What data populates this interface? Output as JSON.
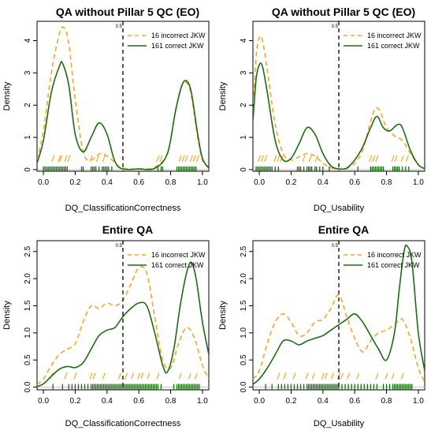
{
  "colors": {
    "incorrect": "#f5a623",
    "correct": "#1d6b14",
    "axis": "#000000",
    "cutoff": "#000000"
  },
  "chart_data": [
    {
      "type": "line",
      "title": "QA without Pillar 5 QC (EO)",
      "xlabel": "DQ_ClassificationCorrectness",
      "ylabel": "Density",
      "xlim": [
        -0.04,
        1.04
      ],
      "ylim": [
        -0.05,
        4.6
      ],
      "xticks": [
        0.0,
        0.2,
        0.4,
        0.6,
        0.8,
        1.0
      ],
      "xtick_labels": [
        "0.0",
        "0.2",
        "0.4",
        "0.6",
        "0.8",
        "1.0"
      ],
      "yticks": [
        0,
        1,
        2,
        3,
        4
      ],
      "ytick_labels": [
        "0",
        "1",
        "2",
        "3",
        "4"
      ],
      "cutoff": {
        "x": 0.5,
        "label": "0.5"
      },
      "legend": {
        "placement": "top-right",
        "entries": [
          "16 incorrect JKW",
          "161 correct JKW"
        ]
      },
      "series": [
        {
          "name": "16 incorrect JKW",
          "style": "dashed",
          "x": [
            -0.04,
            0.0,
            0.05,
            0.1,
            0.13,
            0.16,
            0.2,
            0.25,
            0.3,
            0.36,
            0.42,
            0.48,
            0.55,
            0.62,
            0.7,
            0.78,
            0.83,
            0.87,
            0.9,
            0.93,
            0.97,
            1.0,
            1.04
          ],
          "y": [
            0.3,
            1.2,
            3.0,
            4.2,
            4.4,
            3.9,
            2.2,
            0.55,
            0.3,
            0.5,
            0.35,
            0.08,
            0.02,
            0.02,
            0.08,
            0.5,
            1.8,
            2.6,
            2.7,
            2.3,
            1.0,
            0.3,
            0.05
          ]
        },
        {
          "name": "161 correct JKW",
          "style": "solid",
          "x": [
            -0.04,
            0.0,
            0.05,
            0.1,
            0.12,
            0.16,
            0.2,
            0.25,
            0.3,
            0.35,
            0.4,
            0.45,
            0.5,
            0.6,
            0.7,
            0.78,
            0.83,
            0.87,
            0.9,
            0.93,
            0.97,
            1.0,
            1.04
          ],
          "y": [
            0.2,
            0.9,
            2.4,
            3.2,
            3.3,
            2.6,
            1.1,
            0.55,
            1.0,
            1.45,
            1.1,
            0.25,
            0.02,
            0.02,
            0.04,
            0.5,
            1.8,
            2.6,
            2.75,
            2.4,
            1.1,
            0.35,
            0.05
          ]
        }
      ],
      "rug": {
        "incorrect": [
          0.06,
          0.1,
          0.11,
          0.14,
          0.16,
          0.3,
          0.34,
          0.38,
          0.72,
          0.74,
          0.86,
          0.88,
          0.9,
          0.93,
          0.95,
          0.97
        ],
        "correct": [
          0.0,
          0.01,
          0.02,
          0.03,
          0.04,
          0.05,
          0.06,
          0.07,
          0.08,
          0.09,
          0.1,
          0.11,
          0.12,
          0.13,
          0.14,
          0.15,
          0.24,
          0.25,
          0.3,
          0.31,
          0.32,
          0.33,
          0.35,
          0.37,
          0.38,
          0.39,
          0.4,
          0.41,
          0.43,
          0.72,
          0.74,
          0.75,
          0.84,
          0.85,
          0.86,
          0.87,
          0.88,
          0.89,
          0.9,
          0.91,
          0.92,
          0.93,
          0.94,
          0.95,
          0.96
        ]
      }
    },
    {
      "type": "line",
      "title": "QA without Pillar 5 QC (EO)",
      "xlabel": "DQ_Usability",
      "ylabel": "Density",
      "xlim": [
        -0.04,
        1.04
      ],
      "ylim": [
        -0.05,
        4.6
      ],
      "xticks": [
        0.0,
        0.2,
        0.4,
        0.6,
        0.8,
        1.0
      ],
      "xtick_labels": [
        "0.0",
        "0.2",
        "0.4",
        "0.6",
        "0.8",
        "1.0"
      ],
      "yticks": [
        0,
        1,
        2,
        3,
        4
      ],
      "ytick_labels": [
        "0",
        "1",
        "2",
        "3",
        "4"
      ],
      "cutoff": {
        "x": 0.5,
        "label": "0.5"
      },
      "legend": {
        "placement": "top-right",
        "entries": [
          "16 incorrect JKW",
          "161 correct JKW"
        ]
      },
      "series": [
        {
          "name": "16 incorrect JKW",
          "style": "dashed",
          "x": [
            -0.04,
            -0.02,
            0.0,
            0.02,
            0.05,
            0.1,
            0.15,
            0.2,
            0.25,
            0.3,
            0.35,
            0.4,
            0.45,
            0.5,
            0.55,
            0.6,
            0.65,
            0.7,
            0.73,
            0.76,
            0.8,
            0.85,
            0.9,
            0.95,
            1.0,
            1.04
          ],
          "y": [
            1.8,
            3.5,
            4.1,
            4.0,
            3.1,
            1.4,
            0.5,
            0.3,
            0.4,
            0.5,
            0.42,
            0.2,
            0.06,
            0.02,
            0.04,
            0.2,
            0.6,
            1.5,
            1.9,
            1.8,
            1.3,
            1.05,
            0.9,
            0.5,
            0.15,
            0.03
          ]
        },
        {
          "name": "161 correct JKW",
          "style": "solid",
          "x": [
            -0.04,
            -0.02,
            0.0,
            0.02,
            0.05,
            0.1,
            0.15,
            0.2,
            0.25,
            0.3,
            0.35,
            0.4,
            0.45,
            0.5,
            0.55,
            0.6,
            0.65,
            0.7,
            0.74,
            0.78,
            0.82,
            0.87,
            0.9,
            0.95,
            1.0,
            1.04
          ],
          "y": [
            1.5,
            2.8,
            3.25,
            3.2,
            2.4,
            0.9,
            0.3,
            0.35,
            0.8,
            1.3,
            1.1,
            0.5,
            0.12,
            0.02,
            0.05,
            0.3,
            0.7,
            1.3,
            1.65,
            1.3,
            1.2,
            1.4,
            1.3,
            0.6,
            0.15,
            0.03
          ]
        }
      ],
      "rug": {
        "incorrect": [
          0.0,
          0.02,
          0.04,
          0.1,
          0.12,
          0.14,
          0.28,
          0.32,
          0.36,
          0.7,
          0.72,
          0.74,
          0.84,
          0.86,
          0.9,
          0.93
        ],
        "correct": [
          -0.02,
          -0.01,
          0.0,
          0.01,
          0.02,
          0.03,
          0.04,
          0.05,
          0.06,
          0.07,
          0.08,
          0.1,
          0.12,
          0.24,
          0.25,
          0.26,
          0.28,
          0.3,
          0.31,
          0.32,
          0.33,
          0.35,
          0.36,
          0.38,
          0.4,
          0.44,
          0.62,
          0.7,
          0.71,
          0.72,
          0.73,
          0.74,
          0.75,
          0.76,
          0.77,
          0.78,
          0.84,
          0.85,
          0.86,
          0.87,
          0.88,
          0.9,
          0.92,
          0.94
        ]
      }
    },
    {
      "type": "line",
      "title": "Entire QA",
      "xlabel": "DQ_ClassificationCorrectness",
      "ylabel": "Density",
      "xlim": [
        -0.04,
        1.04
      ],
      "ylim": [
        -0.05,
        2.7
      ],
      "xticks": [
        0.0,
        0.2,
        0.4,
        0.6,
        0.8,
        1.0
      ],
      "xtick_labels": [
        "0.0",
        "0.2",
        "0.4",
        "0.6",
        "0.8",
        "1.0"
      ],
      "yticks": [
        0.0,
        0.5,
        1.0,
        1.5,
        2.0,
        2.5
      ],
      "ytick_labels": [
        "0.0",
        "0.5",
        "1.0",
        "1.5",
        "2.0",
        "2.5"
      ],
      "cutoff": {
        "x": 0.5,
        "label": "0.5"
      },
      "legend": {
        "placement": "top-right",
        "entries": [
          "16 incorrect JKW",
          "161 correct JKW"
        ]
      },
      "series": [
        {
          "name": "16 incorrect JKW",
          "style": "dashed",
          "x": [
            -0.04,
            0.0,
            0.05,
            0.1,
            0.15,
            0.2,
            0.25,
            0.3,
            0.35,
            0.4,
            0.45,
            0.5,
            0.55,
            0.6,
            0.65,
            0.7,
            0.75,
            0.8,
            0.85,
            0.9,
            0.95,
            1.0,
            1.04
          ],
          "y": [
            0.05,
            0.15,
            0.4,
            0.6,
            0.7,
            0.8,
            1.2,
            1.5,
            1.45,
            1.55,
            1.5,
            1.6,
            1.9,
            2.2,
            2.1,
            1.3,
            0.5,
            0.35,
            0.8,
            1.1,
            0.9,
            0.4,
            0.15
          ]
        },
        {
          "name": "161 correct JKW",
          "style": "solid",
          "x": [
            -0.04,
            0.0,
            0.05,
            0.1,
            0.15,
            0.2,
            0.25,
            0.3,
            0.35,
            0.4,
            0.45,
            0.5,
            0.55,
            0.6,
            0.65,
            0.7,
            0.75,
            0.78,
            0.82,
            0.86,
            0.9,
            0.93,
            0.96,
            1.0,
            1.04
          ],
          "y": [
            0.01,
            0.06,
            0.2,
            0.33,
            0.38,
            0.36,
            0.45,
            0.7,
            0.95,
            1.05,
            1.1,
            1.3,
            1.45,
            1.55,
            1.5,
            1.0,
            0.4,
            0.28,
            0.7,
            1.5,
            2.1,
            2.3,
            2.0,
            1.2,
            0.6
          ]
        }
      ],
      "rug": {
        "incorrect": [
          0.05,
          0.14,
          0.2,
          0.3,
          0.32,
          0.38,
          0.48,
          0.52,
          0.56,
          0.6,
          0.62,
          0.66,
          0.72,
          0.86,
          0.92,
          0.96
        ],
        "correct": [
          0.06,
          0.12,
          0.16,
          0.18,
          0.2,
          0.22,
          0.24,
          0.26,
          0.28,
          0.3,
          0.31,
          0.32,
          0.33,
          0.34,
          0.35,
          0.36,
          0.37,
          0.38,
          0.39,
          0.4,
          0.41,
          0.42,
          0.43,
          0.44,
          0.45,
          0.46,
          0.47,
          0.48,
          0.49,
          0.5,
          0.51,
          0.52,
          0.53,
          0.54,
          0.55,
          0.56,
          0.57,
          0.58,
          0.59,
          0.6,
          0.61,
          0.62,
          0.63,
          0.64,
          0.65,
          0.66,
          0.67,
          0.68,
          0.69,
          0.7,
          0.71,
          0.72,
          0.74,
          0.82,
          0.84,
          0.85,
          0.86,
          0.87,
          0.88,
          0.89,
          0.9,
          0.91,
          0.92,
          0.93,
          0.94,
          0.95,
          0.96,
          0.97,
          0.98
        ]
      }
    },
    {
      "type": "line",
      "title": "Entire QA",
      "xlabel": "DQ_Usability",
      "ylabel": "Density",
      "xlim": [
        -0.04,
        1.04
      ],
      "ylim": [
        -0.05,
        2.7
      ],
      "xticks": [
        0.0,
        0.2,
        0.4,
        0.6,
        0.8,
        1.0
      ],
      "xtick_labels": [
        "0.0",
        "0.2",
        "0.4",
        "0.6",
        "0.8",
        "1.0"
      ],
      "yticks": [
        0.0,
        0.5,
        1.0,
        1.5,
        2.0,
        2.5
      ],
      "ytick_labels": [
        "0.0",
        "0.5",
        "1.0",
        "1.5",
        "2.0",
        "2.5"
      ],
      "cutoff": {
        "x": 0.5,
        "label": "0.5"
      },
      "legend": {
        "placement": "top-right",
        "entries": [
          "16 incorrect JKW",
          "161 correct JKW"
        ]
      },
      "series": [
        {
          "name": "16 incorrect JKW",
          "style": "dashed",
          "x": [
            -0.04,
            0.0,
            0.05,
            0.1,
            0.15,
            0.2,
            0.25,
            0.3,
            0.35,
            0.4,
            0.45,
            0.5,
            0.55,
            0.6,
            0.65,
            0.7,
            0.75,
            0.8,
            0.85,
            0.9,
            0.95,
            1.0,
            1.04
          ],
          "y": [
            0.15,
            0.3,
            0.8,
            1.2,
            1.35,
            1.2,
            0.95,
            1.0,
            1.2,
            1.25,
            1.45,
            1.7,
            1.3,
            0.9,
            0.65,
            0.85,
            1.0,
            1.05,
            1.15,
            1.25,
            0.9,
            0.35,
            0.1
          ]
        },
        {
          "name": "161 correct JKW",
          "style": "solid",
          "x": [
            -0.04,
            0.0,
            0.05,
            0.1,
            0.15,
            0.2,
            0.25,
            0.3,
            0.35,
            0.4,
            0.45,
            0.5,
            0.55,
            0.6,
            0.65,
            0.7,
            0.75,
            0.8,
            0.85,
            0.88,
            0.91,
            0.93,
            0.96,
            1.0,
            1.04
          ],
          "y": [
            0.05,
            0.15,
            0.35,
            0.6,
            0.85,
            0.85,
            0.78,
            0.85,
            0.9,
            0.95,
            1.05,
            1.15,
            1.25,
            1.35,
            1.2,
            0.95,
            0.7,
            0.5,
            1.0,
            1.8,
            2.5,
            2.6,
            2.3,
            1.0,
            0.3
          ]
        }
      ],
      "rug": {
        "incorrect": [
          0.12,
          0.16,
          0.22,
          0.3,
          0.34,
          0.4,
          0.42,
          0.46,
          0.5,
          0.52,
          0.56,
          0.62,
          0.74,
          0.8,
          0.84,
          0.9
        ],
        "correct": [
          0.04,
          0.08,
          0.12,
          0.14,
          0.16,
          0.18,
          0.2,
          0.22,
          0.24,
          0.26,
          0.28,
          0.3,
          0.31,
          0.32,
          0.33,
          0.34,
          0.35,
          0.36,
          0.37,
          0.38,
          0.39,
          0.4,
          0.41,
          0.42,
          0.43,
          0.44,
          0.45,
          0.46,
          0.47,
          0.48,
          0.49,
          0.5,
          0.52,
          0.54,
          0.56,
          0.58,
          0.6,
          0.62,
          0.64,
          0.66,
          0.68,
          0.7,
          0.72,
          0.74,
          0.78,
          0.8,
          0.82,
          0.84,
          0.85,
          0.86,
          0.87,
          0.88,
          0.89,
          0.9,
          0.91,
          0.92,
          0.93,
          0.94,
          0.95,
          0.96
        ]
      }
    }
  ]
}
